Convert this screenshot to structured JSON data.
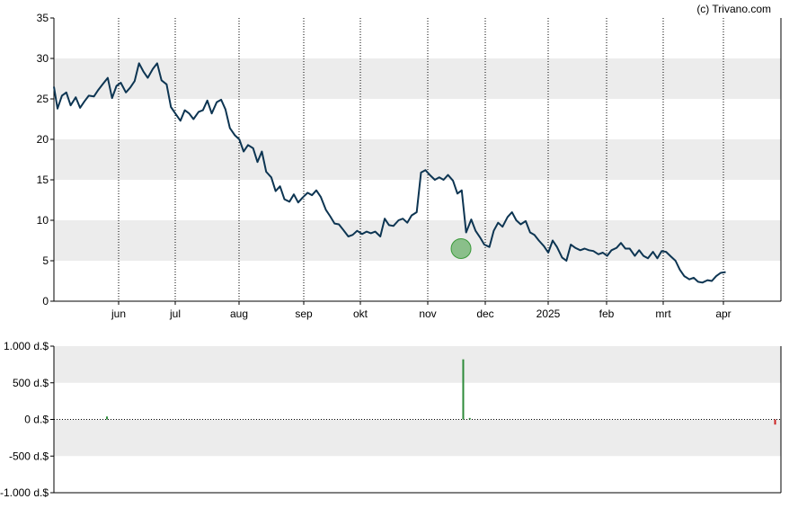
{
  "credit": "(c) Trivano.com",
  "chart_data": [
    {
      "type": "line",
      "x_tick_labels": [
        "jun",
        "jul",
        "aug",
        "sep",
        "okt",
        "nov",
        "dec",
        "2025",
        "feb",
        "mrt",
        "apr"
      ],
      "y_tick_labels": [
        "0",
        "5",
        "10",
        "15",
        "20",
        "25",
        "30",
        "35"
      ],
      "ylim": [
        0,
        35
      ],
      "grid": "vertical dotted lines at month ticks, alternating shaded horizontal bands",
      "series": [
        {
          "color": "#0d3552",
          "values": [
            26.5,
            23.8,
            25.4,
            25.8,
            24.2,
            25.2,
            23.9,
            24.7,
            25.4,
            25.3,
            26.1,
            26.8,
            27.6,
            25.1,
            26.6,
            27.0,
            25.8,
            26.4,
            27.2,
            29.4,
            28.4,
            27.6,
            28.7,
            29.4,
            27.3,
            26.8,
            24.0,
            23.2,
            22.3,
            23.6,
            23.2,
            22.5,
            23.4,
            23.6,
            24.8,
            23.2,
            24.6,
            24.9,
            23.7,
            21.4,
            20.5,
            20.0,
            18.5,
            19.3,
            18.9,
            17.2,
            18.5,
            16.0,
            15.3,
            13.6,
            14.2,
            12.6,
            12.3,
            13.2,
            12.2,
            12.8,
            13.4,
            13.1,
            13.7,
            12.9,
            11.3,
            10.5,
            9.6,
            9.5,
            8.7,
            8.0,
            8.2,
            8.7,
            8.3,
            8.6,
            8.4,
            8.6,
            8.0,
            10.2,
            9.4,
            9.3,
            10.0,
            10.2,
            9.7,
            10.6,
            11.0,
            15.9,
            16.2,
            15.6,
            15.0,
            15.3,
            15.0,
            15.6,
            14.9,
            13.3,
            13.7,
            8.5,
            10.1,
            8.7,
            7.9,
            7.0,
            6.7,
            8.7,
            9.7,
            9.2,
            10.4,
            11.0,
            10.0,
            9.5,
            9.9,
            8.5,
            8.2,
            7.5,
            6.8,
            6.0,
            7.5,
            6.7,
            5.4,
            5.0,
            7.0,
            6.6,
            6.3,
            6.5,
            6.3,
            6.2,
            5.8,
            6.0,
            5.6,
            6.3,
            6.6,
            7.2,
            6.5,
            6.5,
            5.6,
            6.3,
            5.6,
            5.3,
            6.1,
            5.3,
            6.2,
            6.1,
            5.5,
            5.0,
            3.9,
            3.1,
            2.7,
            2.9,
            2.4,
            2.3,
            2.6,
            2.5,
            3.1,
            3.5,
            3.6
          ],
          "x_fraction": [
            0.0,
            0.005,
            0.011,
            0.017,
            0.023,
            0.03,
            0.036,
            0.042,
            0.048,
            0.055,
            0.061,
            0.067,
            0.074,
            0.08,
            0.086,
            0.092,
            0.099,
            0.105,
            0.111,
            0.117,
            0.123,
            0.129,
            0.136,
            0.142,
            0.148,
            0.155,
            0.161,
            0.167,
            0.174,
            0.18,
            0.186,
            0.192,
            0.199,
            0.205,
            0.211,
            0.217,
            0.224,
            0.23,
            0.236,
            0.242,
            0.249,
            0.255,
            0.261,
            0.267,
            0.274,
            0.28,
            0.286,
            0.292,
            0.299,
            0.305,
            0.311,
            0.317,
            0.324,
            0.33,
            0.336,
            0.342,
            0.349,
            0.355,
            0.361,
            0.367,
            0.374,
            0.38,
            0.386,
            0.392,
            0.399,
            0.405,
            0.411,
            0.417,
            0.424,
            0.43,
            0.436,
            0.442,
            0.449,
            0.455,
            0.461,
            0.467,
            0.474,
            0.48,
            0.486,
            0.492,
            0.499,
            0.505,
            0.511,
            0.517,
            0.524,
            0.53,
            0.536,
            0.542,
            0.549,
            0.555,
            0.561,
            0.567,
            0.574,
            0.58,
            0.586,
            0.592,
            0.599,
            0.605,
            0.611,
            0.617,
            0.624,
            0.63,
            0.636,
            0.642,
            0.649,
            0.655,
            0.661,
            0.667,
            0.674,
            0.68,
            0.686,
            0.692,
            0.699,
            0.705,
            0.711,
            0.717,
            0.724,
            0.73,
            0.736,
            0.742,
            0.749,
            0.755,
            0.761,
            0.767,
            0.774,
            0.78,
            0.786,
            0.792,
            0.799,
            0.805,
            0.811,
            0.817,
            0.824,
            0.83,
            0.836,
            0.842,
            0.849,
            0.855,
            0.861,
            0.867,
            0.874,
            0.88,
            0.886,
            0.892,
            0.899,
            0.905,
            0.911,
            0.917,
            0.924
          ],
          "marker": {
            "value": 6.5,
            "x_fraction": 0.56,
            "color": "#3a9a3a"
          }
        }
      ]
    },
    {
      "type": "bar",
      "y_tick_labels": [
        "1.000 d.$",
        "500 d.$",
        "0 d.$",
        "-500 d.$",
        "-1.000 d.$"
      ],
      "ylim": [
        -1000,
        1000
      ],
      "bars": [
        {
          "x_fraction": 0.073,
          "value": 40,
          "color": "#2e8b3a"
        },
        {
          "x_fraction": 0.563,
          "value": 820,
          "color": "#2e8b3a"
        },
        {
          "x_fraction": 0.572,
          "value": 20,
          "color": "#2e8b3a"
        },
        {
          "x_fraction": 0.992,
          "value": -70,
          "color": "#cc2222"
        }
      ]
    }
  ]
}
